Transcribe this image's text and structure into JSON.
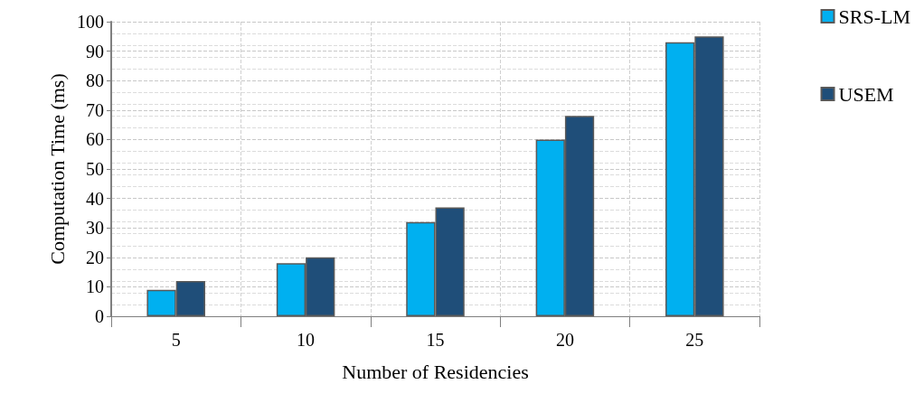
{
  "chart_data": {
    "type": "bar",
    "xlabel": "Number of Residencies",
    "ylabel": "Computation Time (ms)",
    "categories": [
      "5",
      "10",
      "15",
      "20",
      "25"
    ],
    "series": [
      {
        "name": "SRS-LM",
        "color": "#00b0f0",
        "values": [
          9,
          18,
          32,
          60,
          93
        ]
      },
      {
        "name": "USEM",
        "color": "#1f4e79",
        "values": [
          12,
          20,
          37,
          68,
          95
        ]
      }
    ],
    "ylim": [
      0,
      100
    ],
    "yticks": [
      0,
      10,
      20,
      30,
      40,
      50,
      60,
      70,
      80,
      90,
      100
    ],
    "grid": true,
    "legend": "top right"
  }
}
